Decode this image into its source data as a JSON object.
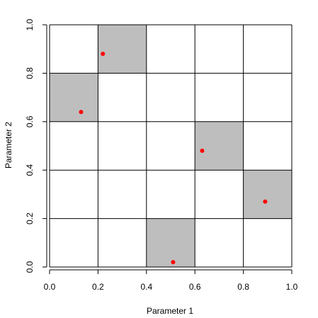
{
  "chart_data": {
    "type": "scatter",
    "title": "",
    "xlabel": "Parameter 1",
    "ylabel": "Parameter 2",
    "xlim": [
      0,
      1
    ],
    "ylim": [
      0,
      1
    ],
    "x_ticks": [
      0,
      0.2,
      0.4,
      0.6,
      0.8,
      1
    ],
    "y_ticks": [
      0,
      0.2,
      0.4,
      0.6,
      0.8,
      1
    ],
    "x_tick_labels": [
      "0.0",
      "0.2",
      "0.4",
      "0.6",
      "0.8",
      "1.0"
    ],
    "y_tick_labels": [
      "0.0",
      "0.2",
      "0.4",
      "0.6",
      "0.8",
      "1.0"
    ],
    "grid": true,
    "grid_divisions": 5,
    "shaded_cells": [
      {
        "x": [
          0.2,
          0.4
        ],
        "y": [
          0.8,
          1.0
        ]
      },
      {
        "x": [
          0.0,
          0.2
        ],
        "y": [
          0.6,
          0.8
        ]
      },
      {
        "x": [
          0.6,
          0.8
        ],
        "y": [
          0.4,
          0.6
        ]
      },
      {
        "x": [
          0.8,
          1.0
        ],
        "y": [
          0.2,
          0.4
        ]
      },
      {
        "x": [
          0.4,
          0.6
        ],
        "y": [
          0.0,
          0.2
        ]
      }
    ],
    "points": [
      {
        "x": 0.22,
        "y": 0.88
      },
      {
        "x": 0.13,
        "y": 0.64
      },
      {
        "x": 0.63,
        "y": 0.48
      },
      {
        "x": 0.89,
        "y": 0.27
      },
      {
        "x": 0.51,
        "y": 0.02
      }
    ],
    "colors": {
      "point": "#ff0000",
      "shade": "#bebebe",
      "grid": "#000000"
    }
  }
}
